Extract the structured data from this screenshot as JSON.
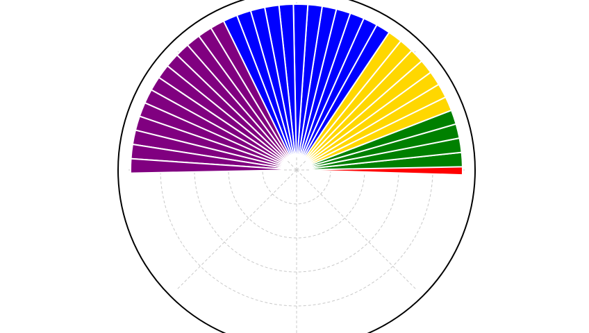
{
  "chart_data": {
    "type": "bar",
    "projection": "polar",
    "orientation": "semicircle-upper-half",
    "grid": true,
    "grid_style": "dashed",
    "rlim": [
      0,
      1
    ],
    "angular_range_deg": [
      0,
      180
    ],
    "bar_length": 1.0,
    "inner_hole": 0.08,
    "series": [
      {
        "color": "#ff0000",
        "angles_deg": [
          0.8
        ]
      },
      {
        "color": "#008000",
        "angles_deg": [
          3.6,
          8.6,
          13.6,
          18.6
        ]
      },
      {
        "color": "#ffd700",
        "angles_deg": [
          23.6,
          28.6,
          33.6,
          38.6,
          43.6,
          48.6,
          53.6
        ]
      },
      {
        "color": "#0000ff",
        "angles_deg": [
          58.6,
          63.6,
          68.6,
          73.6,
          78.6,
          83.6,
          88.6,
          93.6,
          98.6,
          103.6,
          108.6,
          113.6
        ]
      },
      {
        "color": "#800080",
        "angles_deg": [
          118.6,
          123.6,
          128.6,
          133.6,
          138.6,
          143.6,
          148.6,
          153.6,
          158.6,
          163.6,
          168.6,
          173.6,
          178.6
        ]
      }
    ]
  }
}
